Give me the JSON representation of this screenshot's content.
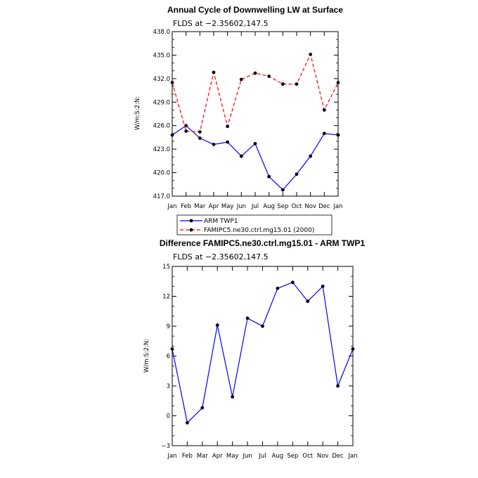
{
  "chart_data": [
    {
      "type": "line",
      "title": "Annual Cycle of Downwelling LW at Surface",
      "subtitle": "FLDS at −2.35602,147.5",
      "ylabel": "W/m:S:2:N:",
      "xlabel": "",
      "categories": [
        "Jan",
        "Feb",
        "Mar",
        "Apr",
        "May",
        "Jun",
        "Jul",
        "Aug",
        "Sep",
        "Oct",
        "Nov",
        "Dec",
        "Jan"
      ],
      "ylim": [
        417.0,
        438.0
      ],
      "yticks": [
        "417.0",
        "420.0",
        "423.0",
        "426.0",
        "429.0",
        "432.0",
        "435.0",
        "438.0"
      ],
      "grid": false,
      "legend_position": "bottom",
      "series": [
        {
          "name": "ARM TWP1",
          "color": "#0000ff",
          "dash": "solid",
          "values": [
            424.8,
            426.0,
            424.4,
            423.6,
            423.9,
            422.1,
            423.7,
            419.5,
            417.8,
            419.8,
            422.1,
            425.0,
            424.8
          ]
        },
        {
          "name": "FAMIPC5.ne30.ctrl.mg15.01 (2000)",
          "color": "#ff0000",
          "dash": "dashed",
          "values": [
            431.5,
            425.3,
            425.2,
            432.8,
            425.9,
            431.9,
            432.7,
            432.3,
            431.3,
            431.3,
            435.1,
            428.0,
            431.5
          ]
        }
      ]
    },
    {
      "type": "line",
      "title": "Difference FAMIPC5.ne30.ctrl.mg15.01 - ARM TWP1",
      "subtitle": "FLDS at −2.35602,147.5",
      "ylabel": "W/m:S:2:N:",
      "xlabel": "",
      "categories": [
        "Jan",
        "Feb",
        "Mar",
        "Apr",
        "May",
        "Jun",
        "Jul",
        "Aug",
        "Sep",
        "Oct",
        "Nov",
        "Dec",
        "Jan"
      ],
      "ylim": [
        -3,
        15
      ],
      "yticks": [
        "−3",
        "0",
        "3",
        "6",
        "9",
        "12",
        "15"
      ],
      "grid": false,
      "series": [
        {
          "color": "#0000ff",
          "dash": "solid",
          "values": [
            6.7,
            -0.7,
            0.8,
            9.1,
            1.9,
            9.8,
            9.0,
            12.8,
            13.4,
            11.5,
            13.0,
            3.0,
            6.7
          ]
        }
      ]
    }
  ]
}
